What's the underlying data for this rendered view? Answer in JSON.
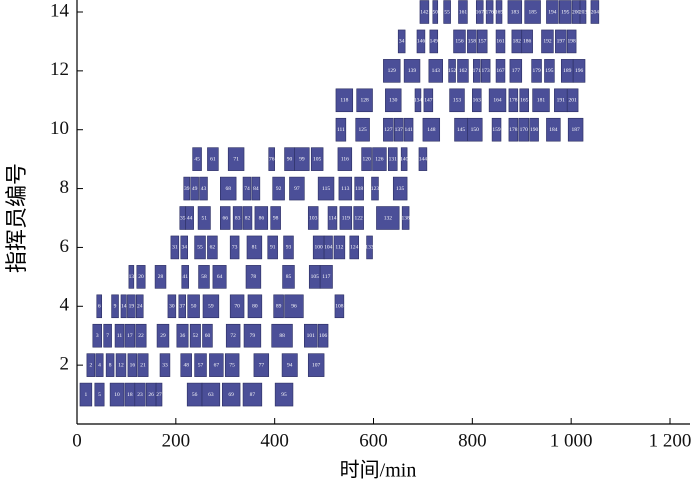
{
  "chart_data": {
    "type": "gantt",
    "xlabel": "时间/min",
    "ylabel": "指挥员编号",
    "xlim": [
      0,
      1200
    ],
    "xticks": [
      0,
      200,
      400,
      600,
      800,
      {
        "value": 1000,
        "label": "1 000"
      },
      {
        "value": 1200,
        "label": "1 200"
      }
    ],
    "ylim": [
      0,
      14
    ],
    "yticks": [
      2,
      4,
      6,
      8,
      10,
      12,
      14
    ],
    "color": "#4b4f98",
    "rows": [
      {
        "y": 1,
        "tasks": [
          [
            6,
            30,
            "1"
          ],
          [
            36,
            55,
            "5"
          ],
          [
            67,
            95,
            "10"
          ],
          [
            97,
            117,
            "18"
          ],
          [
            117,
            138,
            "23"
          ],
          [
            140,
            160,
            "26"
          ],
          [
            160,
            172,
            "27"
          ],
          [
            223,
            253,
            "56"
          ],
          [
            253,
            289,
            "63"
          ],
          [
            294,
            330,
            "69"
          ],
          [
            336,
            374,
            "87"
          ],
          [
            401,
            437,
            "95"
          ]
        ]
      },
      {
        "y": 2,
        "tasks": [
          [
            20,
            36,
            "2"
          ],
          [
            38,
            53,
            "4"
          ],
          [
            59,
            75,
            "8"
          ],
          [
            79,
            99,
            "12"
          ],
          [
            103,
            121,
            "16"
          ],
          [
            123,
            144,
            "21"
          ],
          [
            168,
            188,
            "33"
          ],
          [
            210,
            232,
            "48"
          ],
          [
            238,
            262,
            "57"
          ],
          [
            268,
            296,
            "67"
          ],
          [
            300,
            328,
            "75"
          ],
          [
            358,
            388,
            "77"
          ],
          [
            415,
            446,
            "94"
          ],
          [
            468,
            500,
            "107"
          ]
        ]
      },
      {
        "y": 3,
        "tasks": [
          [
            32,
            50,
            "3"
          ],
          [
            54,
            70,
            "7"
          ],
          [
            77,
            95,
            "11"
          ],
          [
            97,
            117,
            "17"
          ],
          [
            119,
            140,
            "22"
          ],
          [
            162,
            186,
            "29"
          ],
          [
            202,
            225,
            "36"
          ],
          [
            229,
            250,
            "52"
          ],
          [
            254,
            274,
            "60"
          ],
          [
            302,
            330,
            "72"
          ],
          [
            338,
            372,
            "79"
          ],
          [
            394,
            436,
            "88"
          ],
          [
            460,
            486,
            "101"
          ],
          [
            488,
            508,
            "106"
          ]
        ]
      },
      {
        "y": 4,
        "tasks": [
          [
            40,
            50,
            "6"
          ],
          [
            70,
            84,
            "9"
          ],
          [
            89,
            100,
            "14"
          ],
          [
            102,
            118,
            "19"
          ],
          [
            120,
            134,
            "24"
          ],
          [
            184,
            200,
            "30"
          ],
          [
            206,
            220,
            "37"
          ],
          [
            224,
            248,
            "50"
          ],
          [
            255,
            287,
            "59"
          ],
          [
            310,
            338,
            "70"
          ],
          [
            346,
            374,
            "80"
          ],
          [
            398,
            418,
            "89"
          ],
          [
            420,
            458,
            "96"
          ],
          [
            522,
            540,
            "108"
          ]
        ]
      },
      {
        "y": 5,
        "tasks": [
          [
            105,
            115,
            "13"
          ],
          [
            121,
            138,
            "20"
          ],
          [
            158,
            180,
            "28"
          ],
          [
            212,
            226,
            "41"
          ],
          [
            246,
            268,
            "58"
          ],
          [
            275,
            302,
            "64"
          ],
          [
            342,
            372,
            "78"
          ],
          [
            416,
            440,
            "85"
          ],
          [
            470,
            492,
            "105"
          ],
          [
            492,
            517,
            "117"
          ]
        ]
      },
      {
        "y": 6,
        "tasks": [
          [
            190,
            206,
            "31"
          ],
          [
            210,
            224,
            "34"
          ],
          [
            238,
            260,
            "55"
          ],
          [
            264,
            284,
            "62"
          ],
          [
            310,
            328,
            "73"
          ],
          [
            344,
            374,
            "81"
          ],
          [
            386,
            406,
            "91"
          ],
          [
            418,
            438,
            "93"
          ],
          [
            478,
            500,
            "100"
          ],
          [
            500,
            517,
            "104"
          ],
          [
            520,
            542,
            "112"
          ],
          [
            552,
            570,
            "124"
          ],
          [
            586,
            598,
            "133"
          ]
        ]
      },
      {
        "y": 7,
        "tasks": [
          [
            208,
            220,
            "35"
          ],
          [
            220,
            236,
            "44"
          ],
          [
            245,
            270,
            "51"
          ],
          [
            290,
            310,
            "66"
          ],
          [
            316,
            334,
            "83"
          ],
          [
            336,
            354,
            "82"
          ],
          [
            360,
            386,
            "86"
          ],
          [
            392,
            412,
            "98"
          ],
          [
            468,
            488,
            "103"
          ],
          [
            508,
            526,
            "114"
          ],
          [
            532,
            556,
            "119"
          ],
          [
            560,
            580,
            "122"
          ],
          [
            606,
            652,
            "132"
          ],
          [
            658,
            672,
            "138"
          ]
        ]
      },
      {
        "y": 8,
        "tasks": [
          [
            216,
            228,
            "39"
          ],
          [
            230,
            246,
            "49"
          ],
          [
            248,
            264,
            "43"
          ],
          [
            290,
            322,
            "68"
          ],
          [
            336,
            352,
            "74"
          ],
          [
            354,
            370,
            "84"
          ],
          [
            396,
            420,
            "92"
          ],
          [
            430,
            460,
            "97"
          ],
          [
            488,
            520,
            "115"
          ],
          [
            530,
            556,
            "113"
          ],
          [
            562,
            580,
            "118"
          ],
          [
            596,
            610,
            "123"
          ],
          [
            640,
            668,
            "135"
          ]
        ]
      },
      {
        "y": 9,
        "tasks": [
          [
            234,
            252,
            "45"
          ],
          [
            264,
            286,
            "61"
          ],
          [
            306,
            338,
            "71"
          ],
          [
            388,
            400,
            "76"
          ],
          [
            420,
            440,
            "90"
          ],
          [
            440,
            470,
            "99"
          ],
          [
            474,
            498,
            "105"
          ],
          [
            528,
            556,
            "116"
          ],
          [
            576,
            596,
            "120"
          ],
          [
            598,
            626,
            "126"
          ],
          [
            630,
            648,
            "131"
          ],
          [
            656,
            668,
            "140"
          ],
          [
            692,
            708,
            "144"
          ]
        ]
      },
      {
        "y": 10,
        "tasks": [
          [
            524,
            544,
            "111"
          ],
          [
            564,
            592,
            "125"
          ],
          [
            620,
            640,
            "127"
          ],
          [
            642,
            660,
            "137"
          ],
          [
            662,
            680,
            "141"
          ],
          [
            700,
            734,
            "148"
          ],
          [
            764,
            790,
            "145"
          ],
          [
            790,
            820,
            "150"
          ],
          [
            840,
            858,
            "159"
          ],
          [
            874,
            892,
            "178"
          ],
          [
            894,
            914,
            "170"
          ],
          [
            916,
            934,
            "190"
          ],
          [
            950,
            978,
            "184"
          ],
          [
            994,
            1024,
            "187"
          ]
        ]
      },
      {
        "y": 11,
        "tasks": [
          [
            524,
            558,
            "118"
          ],
          [
            566,
            598,
            "128"
          ],
          [
            624,
            656,
            "130"
          ],
          [
            684,
            696,
            "134"
          ],
          [
            702,
            720,
            "147"
          ],
          [
            754,
            784,
            "153"
          ],
          [
            800,
            818,
            "163"
          ],
          [
            834,
            868,
            "164"
          ],
          [
            874,
            892,
            "178"
          ],
          [
            896,
            914,
            "165"
          ],
          [
            922,
            956,
            "181"
          ],
          [
            966,
            992,
            "191"
          ],
          [
            992,
            1014,
            "201"
          ]
        ]
      },
      {
        "y": 12,
        "tasks": [
          [
            620,
            654,
            "129"
          ],
          [
            662,
            694,
            "139"
          ],
          [
            712,
            740,
            "143"
          ],
          [
            752,
            766,
            "152"
          ],
          [
            770,
            792,
            "162"
          ],
          [
            802,
            816,
            "171"
          ],
          [
            818,
            836,
            "173"
          ],
          [
            848,
            866,
            "167"
          ],
          [
            876,
            900,
            "177"
          ],
          [
            920,
            940,
            "179"
          ],
          [
            946,
            966,
            "195"
          ],
          [
            980,
            1004,
            "189"
          ],
          [
            1004,
            1028,
            "196"
          ]
        ]
      },
      {
        "y": 13,
        "tasks": [
          [
            650,
            664,
            "34"
          ],
          [
            688,
            704,
            "146"
          ],
          [
            714,
            730,
            "149"
          ],
          [
            762,
            786,
            "156"
          ],
          [
            790,
            808,
            "158"
          ],
          [
            810,
            830,
            "157"
          ],
          [
            848,
            866,
            "161"
          ],
          [
            880,
            900,
            "182"
          ],
          [
            900,
            922,
            "186"
          ],
          [
            940,
            964,
            "192"
          ],
          [
            968,
            990,
            "197"
          ],
          [
            992,
            1010,
            "198"
          ]
        ]
      },
      {
        "y": 14,
        "tasks": [
          [
            694,
            712,
            "142"
          ],
          [
            720,
            730,
            "50"
          ],
          [
            742,
            756,
            "55"
          ],
          [
            772,
            790,
            "161"
          ],
          [
            808,
            822,
            "167"
          ],
          [
            828,
            842,
            "176"
          ],
          [
            848,
            860,
            "169"
          ],
          [
            872,
            900,
            "183"
          ],
          [
            906,
            938,
            "185"
          ],
          [
            950,
            974,
            "194"
          ],
          [
            976,
            1000,
            "195"
          ],
          [
            1002,
            1018,
            "200"
          ],
          [
            1018,
            1030,
            "203"
          ],
          [
            1040,
            1056,
            "204"
          ]
        ]
      }
    ]
  }
}
